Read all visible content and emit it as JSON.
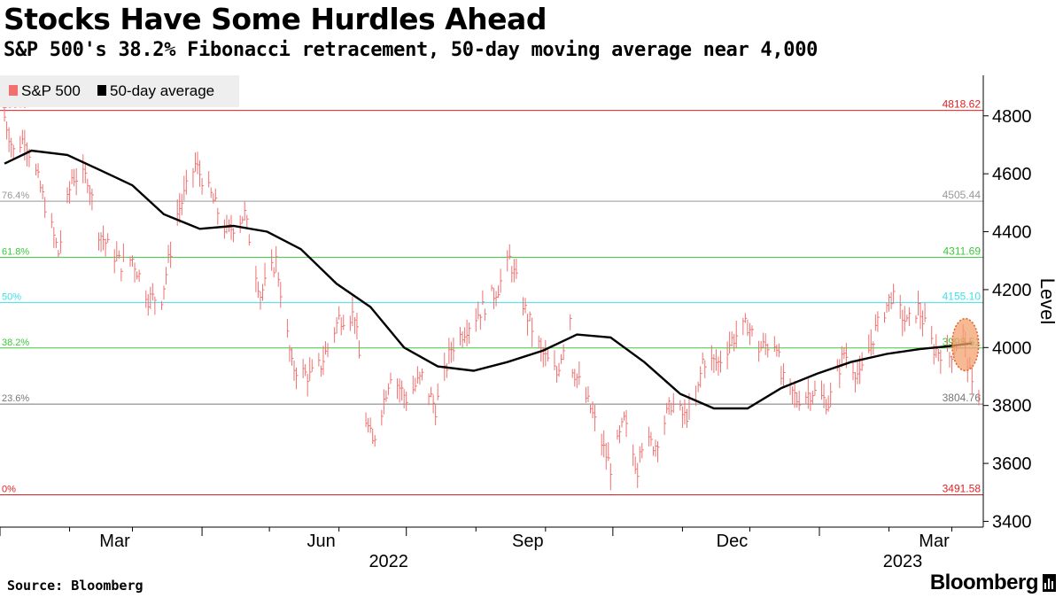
{
  "header": {
    "title": "Stocks Have Some Hurdles Ahead",
    "subtitle": "S&P 500's 38.2% Fibonacci retracement, 50-day moving average near 4,000"
  },
  "footer": {
    "source": "Source: Bloomberg",
    "logo": "Bloomberg"
  },
  "chart_data": {
    "type": "line",
    "title": "Stocks Have Some Hurdles Ahead",
    "subtitle": "S&P 500's 38.2% Fibonacci retracement, 50-day moving average near 4,000",
    "ylabel": "Level",
    "xlabel": "",
    "ylim": [
      3380,
      4940
    ],
    "y_ticks": [
      3400,
      3600,
      3800,
      4000,
      4200,
      4400,
      4600,
      4800
    ],
    "y_tick_labels": [
      "3400",
      "3600",
      "3800",
      "4000",
      "4200",
      "4400",
      "4600",
      "4800"
    ],
    "y_axis_position": "right",
    "grid": false,
    "legend": {
      "position": "top-left",
      "entries": [
        {
          "label": "S&P 500",
          "color": "#f07070"
        },
        {
          "label": "50-day average",
          "color": "#000000"
        }
      ]
    },
    "x_range": [
      "2022-01-01",
      "2023-03-15"
    ],
    "x_month_labels": [
      {
        "date": "2022-03-01",
        "label": "Mar"
      },
      {
        "date": "2022-06-01",
        "label": "Jun"
      },
      {
        "date": "2022-09-01",
        "label": "Sep"
      },
      {
        "date": "2022-12-01",
        "label": "Dec"
      },
      {
        "date": "2023-03-01",
        "label": "Mar"
      }
    ],
    "x_year_labels": [
      {
        "date": "2022-07-01",
        "label": "2022"
      },
      {
        "date": "2023-02-15",
        "label": "2023"
      }
    ],
    "fibonacci_levels": [
      {
        "pct_label": "100%",
        "value": 4818.62,
        "value_label": "4818.62",
        "color": "#e02020"
      },
      {
        "pct_label": "76.4%",
        "value": 4505.44,
        "value_label": "4505.44",
        "color": "#999999"
      },
      {
        "pct_label": "61.8%",
        "value": 4311.69,
        "value_label": "4311.69",
        "color": "#3cc83c"
      },
      {
        "pct_label": "50%",
        "value": 4155.1,
        "value_label": "4155.10",
        "color": "#40e0e8"
      },
      {
        "pct_label": "38.2%",
        "value": 3998.51,
        "value_label": "3998.51",
        "color": "#3cc83c"
      },
      {
        "pct_label": "23.6%",
        "value": 3804.76,
        "value_label": "3804.76",
        "color": "#777777"
      },
      {
        "pct_label": "0%",
        "value": 3491.58,
        "value_label": "3491.58",
        "color": "#e02020"
      }
    ],
    "highlight": {
      "date": "2023-03-07",
      "low": 3920,
      "high": 4100,
      "color": "#f4a070"
    },
    "series": [
      {
        "name": "S&P 500",
        "color": "#f07070",
        "points": [
          [
            "2022-01-03",
            4796
          ],
          [
            "2022-01-07",
            4677
          ],
          [
            "2022-01-12",
            4726
          ],
          [
            "2022-01-18",
            4577
          ],
          [
            "2022-01-24",
            4410
          ],
          [
            "2022-01-27",
            4326
          ],
          [
            "2022-02-02",
            4589
          ],
          [
            "2022-02-09",
            4587
          ],
          [
            "2022-02-14",
            4401
          ],
          [
            "2022-02-18",
            4349
          ],
          [
            "2022-02-24",
            4288
          ],
          [
            "2022-03-01",
            4306
          ],
          [
            "2022-03-08",
            4170
          ],
          [
            "2022-03-14",
            4173
          ],
          [
            "2022-03-21",
            4461
          ],
          [
            "2022-03-29",
            4631
          ],
          [
            "2022-04-05",
            4525
          ],
          [
            "2022-04-12",
            4397
          ],
          [
            "2022-04-20",
            4459
          ],
          [
            "2022-04-27",
            4183
          ],
          [
            "2022-05-04",
            4300
          ],
          [
            "2022-05-11",
            3935
          ],
          [
            "2022-05-19",
            3900
          ],
          [
            "2022-05-24",
            3941
          ],
          [
            "2022-06-01",
            4101
          ],
          [
            "2022-06-08",
            4115
          ],
          [
            "2022-06-13",
            3750
          ],
          [
            "2022-06-16",
            3667
          ],
          [
            "2022-06-24",
            3912
          ],
          [
            "2022-07-01",
            3825
          ],
          [
            "2022-07-08",
            3899
          ],
          [
            "2022-07-14",
            3790
          ],
          [
            "2022-07-21",
            3998
          ],
          [
            "2022-07-28",
            4072
          ],
          [
            "2022-08-05",
            4145
          ],
          [
            "2022-08-11",
            4207
          ],
          [
            "2022-08-16",
            4305
          ],
          [
            "2022-08-23",
            4128
          ],
          [
            "2022-08-30",
            3986
          ],
          [
            "2022-09-06",
            3908
          ],
          [
            "2022-09-12",
            4110
          ],
          [
            "2022-09-13",
            3932
          ],
          [
            "2022-09-21",
            3790
          ],
          [
            "2022-09-27",
            3648
          ],
          [
            "2022-09-30",
            3586
          ],
          [
            "2022-10-06",
            3745
          ],
          [
            "2022-10-12",
            3577
          ],
          [
            "2022-10-13",
            3670
          ],
          [
            "2022-10-20",
            3666
          ],
          [
            "2022-10-27",
            3807
          ],
          [
            "2022-11-02",
            3760
          ],
          [
            "2022-11-07",
            3806
          ],
          [
            "2022-11-10",
            3956
          ],
          [
            "2022-11-17",
            3947
          ],
          [
            "2022-11-23",
            4027
          ],
          [
            "2022-11-30",
            4080
          ],
          [
            "2022-12-05",
            3998
          ],
          [
            "2022-12-13",
            4019
          ],
          [
            "2022-12-15",
            3895
          ],
          [
            "2022-12-22",
            3822
          ],
          [
            "2022-12-29",
            3849
          ],
          [
            "2023-01-05",
            3808
          ],
          [
            "2023-01-12",
            3983
          ],
          [
            "2023-01-19",
            3898
          ],
          [
            "2023-01-26",
            4060
          ],
          [
            "2023-02-02",
            4179
          ],
          [
            "2023-02-09",
            4081
          ],
          [
            "2023-02-14",
            4136
          ],
          [
            "2023-02-21",
            3997
          ],
          [
            "2023-02-28",
            3970
          ],
          [
            "2023-03-06",
            4048
          ],
          [
            "2023-03-10",
            3861
          ],
          [
            "2023-03-13",
            3855
          ]
        ]
      },
      {
        "name": "50-day average",
        "color": "#000000",
        "points": [
          [
            "2022-01-03",
            4635
          ],
          [
            "2022-01-15",
            4680
          ],
          [
            "2022-01-31",
            4665
          ],
          [
            "2022-02-14",
            4615
          ],
          [
            "2022-03-01",
            4560
          ],
          [
            "2022-03-15",
            4460
          ],
          [
            "2022-03-31",
            4410
          ],
          [
            "2022-04-15",
            4420
          ],
          [
            "2022-04-30",
            4400
          ],
          [
            "2022-05-15",
            4340
          ],
          [
            "2022-05-31",
            4220
          ],
          [
            "2022-06-15",
            4140
          ],
          [
            "2022-06-30",
            4000
          ],
          [
            "2022-07-15",
            3935
          ],
          [
            "2022-07-31",
            3920
          ],
          [
            "2022-08-15",
            3950
          ],
          [
            "2022-08-31",
            3990
          ],
          [
            "2022-09-15",
            4045
          ],
          [
            "2022-09-30",
            4035
          ],
          [
            "2022-10-15",
            3950
          ],
          [
            "2022-10-31",
            3840
          ],
          [
            "2022-11-15",
            3790
          ],
          [
            "2022-11-30",
            3790
          ],
          [
            "2022-12-15",
            3860
          ],
          [
            "2022-12-31",
            3910
          ],
          [
            "2023-01-15",
            3950
          ],
          [
            "2023-01-31",
            3978
          ],
          [
            "2023-02-15",
            3995
          ],
          [
            "2023-02-28",
            4005
          ],
          [
            "2023-03-10",
            4015
          ]
        ]
      }
    ]
  }
}
